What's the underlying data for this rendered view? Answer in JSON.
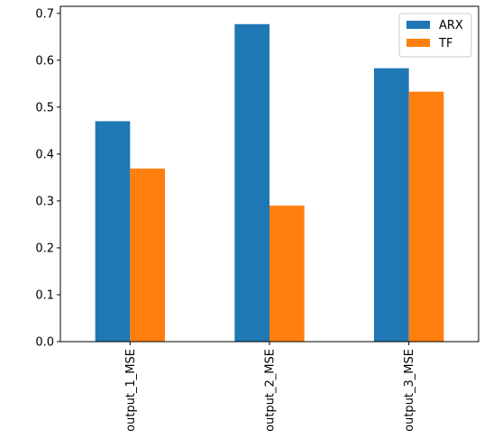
{
  "chart_data": {
    "type": "bar",
    "title": "",
    "xlabel": "",
    "ylabel": "",
    "categories": [
      "output_1_MSE",
      "output_2_MSE",
      "output_3_MSE"
    ],
    "series": [
      {
        "name": "ARX",
        "color": "#1f77b4",
        "values": [
          0.47,
          0.677,
          0.583
        ]
      },
      {
        "name": "TF",
        "color": "#ff7f0e",
        "values": [
          0.369,
          0.29,
          0.533
        ]
      }
    ],
    "ylim": [
      0,
      0.715
    ],
    "yticks": [
      "0.0",
      "0.1",
      "0.2",
      "0.3",
      "0.4",
      "0.5",
      "0.6",
      "0.7"
    ],
    "legend_position": "top-right",
    "grid": false
  }
}
